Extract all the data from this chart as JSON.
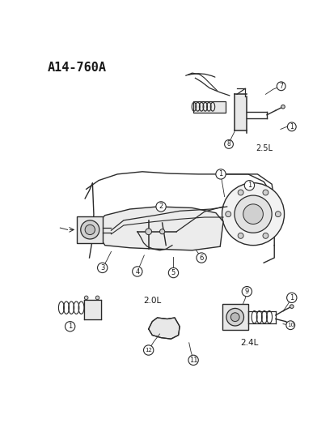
{
  "title": "A14-760A",
  "bg_color": "#ffffff",
  "fig_width": 4.14,
  "fig_height": 5.33,
  "dpi": 100,
  "label_25L": "2.5L",
  "label_20L": "2.0L",
  "label_24L": "2.4L",
  "text_color": "#1a1a1a",
  "line_color": "#2a2a2a",
  "circle_color": "#2a2a2a",
  "circle_fill": "#ffffff",
  "gray_light": "#e8e8e8",
  "gray_mid": "#d0d0d0",
  "gray_dark": "#b0b0b0"
}
